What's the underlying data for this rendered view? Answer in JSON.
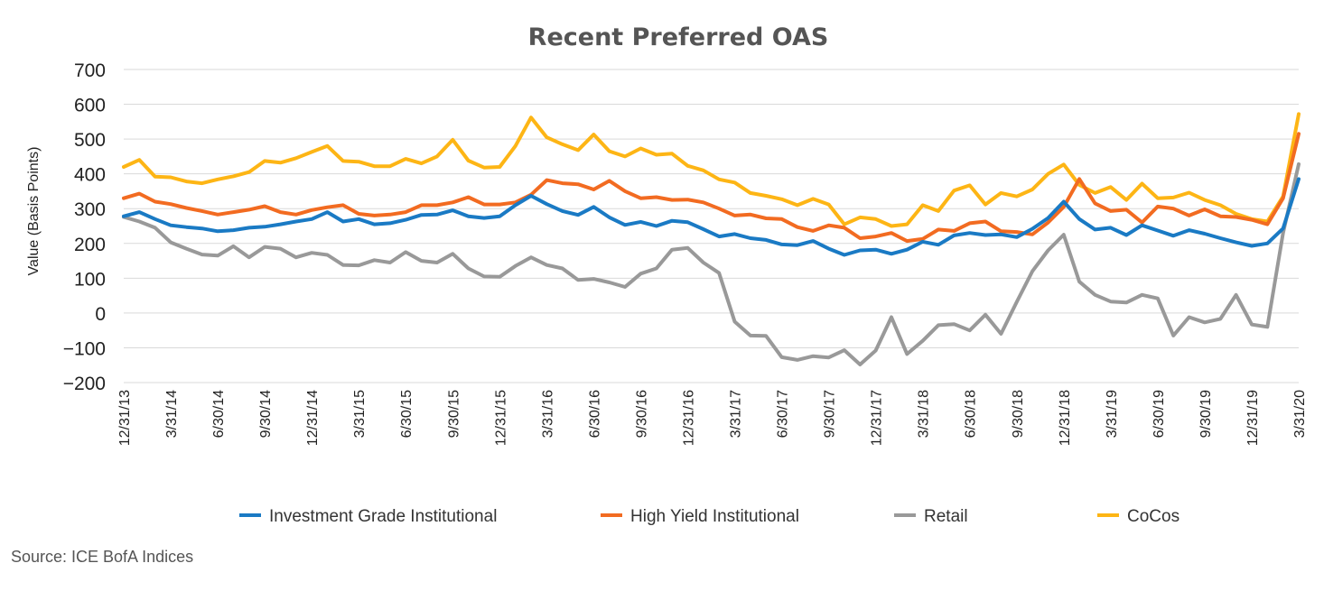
{
  "source_note": "Source: ICE BofA Indices",
  "chart_data": {
    "type": "line",
    "title": "Recent Preferred OAS",
    "ylabel": "Value (Basis Points)",
    "xlabel": "",
    "ylim": [
      -200,
      700
    ],
    "yticks": [
      700,
      600,
      500,
      400,
      300,
      200,
      100,
      0,
      -100,
      -200
    ],
    "grid": true,
    "legend_position": "bottom",
    "x_tick_labels": [
      "12/31/13",
      "3/31/14",
      "6/30/14",
      "9/30/14",
      "12/31/14",
      "3/31/15",
      "6/30/15",
      "9/30/15",
      "12/31/15",
      "3/31/16",
      "6/30/16",
      "9/30/16",
      "12/31/16",
      "3/31/17",
      "6/30/17",
      "9/30/17",
      "12/31/17",
      "3/31/18",
      "6/30/18",
      "9/30/18",
      "12/31/18",
      "3/31/19",
      "6/30/19",
      "9/30/19",
      "12/31/19",
      "3/31/20"
    ],
    "points_per_quarter": 3,
    "series": [
      {
        "name": "Investment Grade Institutional",
        "color": "#1a7ac4",
        "values": [
          278,
          290,
          270,
          252,
          247,
          243,
          235,
          238,
          245,
          248,
          255,
          263,
          270,
          290,
          263,
          270,
          255,
          258,
          268,
          282,
          283,
          295,
          278,
          273,
          278,
          310,
          337,
          313,
          293,
          282,
          305,
          275,
          253,
          262,
          250,
          265,
          261,
          241,
          220,
          227,
          215,
          210,
          197,
          195,
          207,
          185,
          167,
          180,
          182,
          170,
          182,
          205,
          196,
          223,
          230,
          224,
          226,
          218,
          242,
          273,
          320,
          270,
          240,
          245,
          224,
          252,
          237,
          222,
          238,
          228,
          215,
          203,
          193,
          200,
          243,
          385
        ]
      },
      {
        "name": "High Yield Institutional",
        "color": "#f26b21",
        "values": [
          330,
          343,
          320,
          313,
          302,
          293,
          283,
          290,
          297,
          307,
          290,
          283,
          296,
          304,
          310,
          285,
          280,
          283,
          290,
          310,
          310,
          318,
          333,
          312,
          312,
          318,
          340,
          382,
          373,
          370,
          355,
          380,
          350,
          330,
          333,
          325,
          326,
          318,
          300,
          280,
          283,
          272,
          270,
          247,
          236,
          252,
          245,
          215,
          220,
          230,
          207,
          213,
          240,
          236,
          258,
          263,
          235,
          233,
          226,
          260,
          305,
          385,
          315,
          293,
          297,
          260,
          306,
          300,
          280,
          298,
          278,
          276,
          268,
          255,
          330,
          515
        ]
      },
      {
        "name": "Retail",
        "color": "#999999",
        "values": [
          276,
          263,
          245,
          203,
          185,
          168,
          165,
          192,
          160,
          190,
          185,
          160,
          173,
          167,
          138,
          137,
          152,
          145,
          175,
          150,
          145,
          170,
          128,
          105,
          104,
          135,
          160,
          138,
          128,
          95,
          98,
          88,
          75,
          113,
          128,
          182,
          187,
          145,
          115,
          -25,
          -65,
          -66,
          -127,
          -135,
          -124,
          -128,
          -107,
          -148,
          -108,
          -12,
          -118,
          -80,
          -35,
          -32,
          -50,
          -5,
          -60,
          32,
          120,
          180,
          225,
          90,
          52,
          33,
          30,
          52,
          42,
          -65,
          -12,
          -27,
          -17,
          52,
          -33,
          -40,
          230,
          428
        ]
      },
      {
        "name": "CoCos",
        "color": "#fdb515",
        "values": [
          420,
          440,
          392,
          390,
          378,
          373,
          384,
          393,
          405,
          437,
          432,
          445,
          463,
          480,
          437,
          435,
          422,
          422,
          443,
          430,
          450,
          498,
          438,
          418,
          420,
          480,
          562,
          505,
          485,
          468,
          513,
          465,
          450,
          473,
          455,
          458,
          423,
          410,
          384,
          375,
          345,
          337,
          327,
          310,
          328,
          312,
          255,
          275,
          270,
          250,
          255,
          310,
          293,
          352,
          367,
          312,
          345,
          335,
          355,
          400,
          427,
          368,
          345,
          362,
          325,
          372,
          330,
          332,
          346,
          325,
          310,
          285,
          270,
          263,
          335,
          572
        ]
      }
    ]
  }
}
